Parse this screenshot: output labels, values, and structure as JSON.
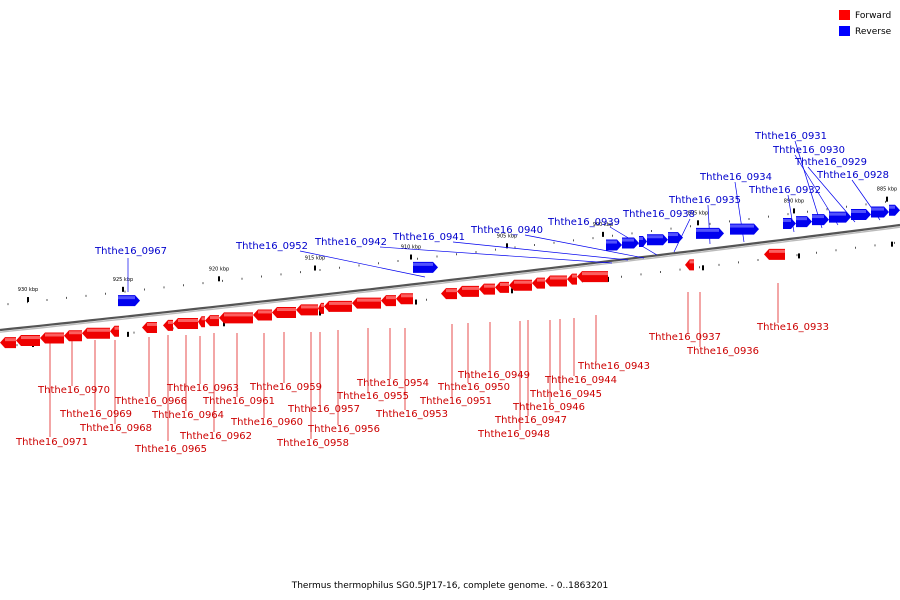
{
  "legend": {
    "forward_label": "Forward",
    "reverse_label": "Reverse",
    "forward_color": "#ff0000",
    "reverse_color": "#0000ff"
  },
  "caption": "Thermus thermophilus SG0.5JP17-16, complete genome. - 0..1863201",
  "scale_labels": [
    "930 kbp",
    "925 kbp",
    "920 kbp",
    "915 kbp",
    "910 kbp",
    "905 kbp",
    "900 kbp",
    "895 kbp",
    "890 kbp",
    "885 kbp"
  ],
  "genes_reverse": [
    "Ththe16_0967",
    "Ththe16_0952",
    "Ththe16_0942",
    "Ththe16_0941",
    "Ththe16_0940",
    "Ththe16_0939",
    "Ththe16_0938",
    "Ththe16_0935",
    "Ththe16_0934",
    "Ththe16_0932",
    "Ththe16_0931",
    "Ththe16_0930",
    "Ththe16_0929",
    "Ththe16_0928"
  ],
  "genes_forward": [
    "Ththe16_0971",
    "Ththe16_0970",
    "Ththe16_0969",
    "Ththe16_0968",
    "Ththe16_0966",
    "Ththe16_0965",
    "Ththe16_0964",
    "Ththe16_0963",
    "Ththe16_0962",
    "Ththe16_0961",
    "Ththe16_0960",
    "Ththe16_0959",
    "Ththe16_0958",
    "Ththe16_0957",
    "Ththe16_0956",
    "Ththe16_0955",
    "Ththe16_0954",
    "Ththe16_0953",
    "Ththe16_0951",
    "Ththe16_0950",
    "Ththe16_0949",
    "Ththe16_0948",
    "Ththe16_0947",
    "Ththe16_0946",
    "Ththe16_0945",
    "Ththe16_0944",
    "Ththe16_0943",
    "Ththe16_0937",
    "Ththe16_0936",
    "Ththe16_0933"
  ]
}
